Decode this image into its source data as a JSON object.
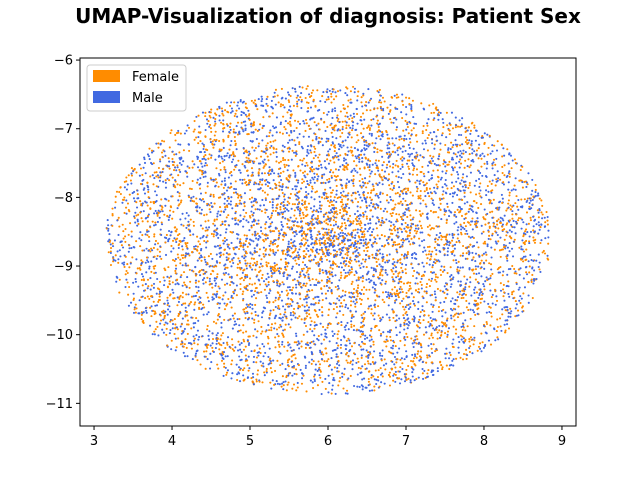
{
  "chart_data": {
    "type": "scatter",
    "title": "UMAP-Visualization of diagnosis: Patient Sex",
    "xlabel": "",
    "ylabel": "",
    "xlim": [
      2.82,
      9.18
    ],
    "ylim": [
      -11.33,
      -5.97
    ],
    "xticks": [
      3,
      4,
      5,
      6,
      7,
      8,
      9
    ],
    "yticks": [
      -6,
      -7,
      -8,
      -9,
      -10,
      -11
    ],
    "xtick_labels": [
      "3",
      "4",
      "5",
      "6",
      "7",
      "8",
      "9"
    ],
    "ytick_labels": [
      "−6",
      "−7",
      "−8",
      "−9",
      "−10",
      "−11"
    ],
    "grid": false,
    "legend_position": "top-left",
    "series": [
      {
        "name": "Female",
        "color": "#FF8C00",
        "point_count": 3400,
        "distribution": {
          "shape": "ellipse",
          "center": [
            6.0,
            -8.62
          ],
          "radius_x": 2.85,
          "radius_y": 2.25
        }
      },
      {
        "name": "Male",
        "color": "#4169E1",
        "point_count": 3400,
        "distribution": {
          "shape": "ellipse",
          "center": [
            6.0,
            -8.62
          ],
          "radius_x": 2.85,
          "radius_y": 2.25
        }
      }
    ]
  }
}
